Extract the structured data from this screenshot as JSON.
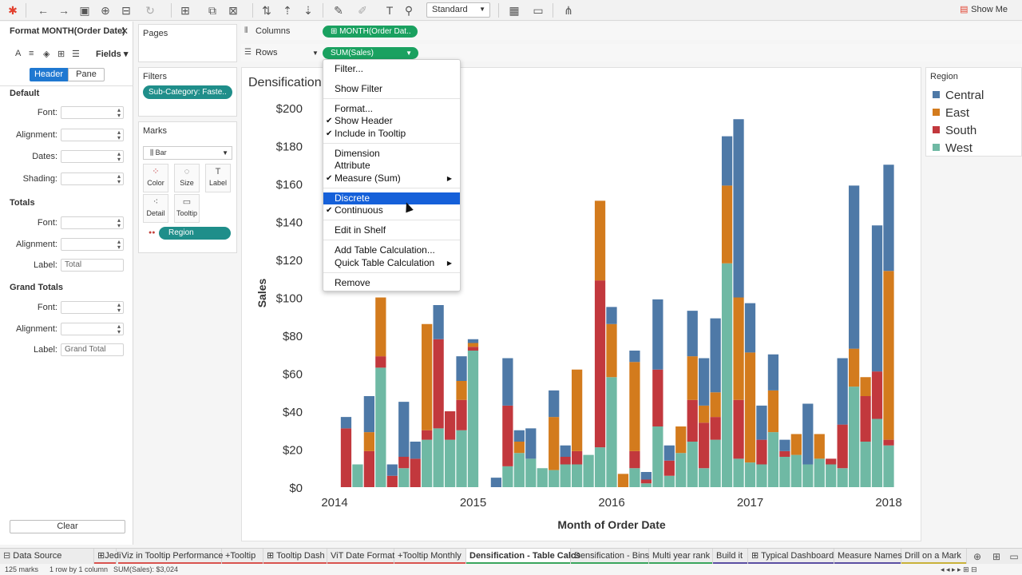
{
  "toolbar": {
    "mode_select": "Standard",
    "show_me": "Show Me"
  },
  "format_panel": {
    "title": "Format MONTH(Order Date)",
    "fields_label": "Fields",
    "tabs": [
      "Header",
      "Pane"
    ],
    "sections": {
      "default": {
        "title": "Default",
        "labels": [
          "Font:",
          "Alignment:",
          "Dates:",
          "Shading:"
        ]
      },
      "totals": {
        "title": "Totals",
        "labels": [
          "Font:",
          "Alignment:",
          "Label:"
        ],
        "label_value": "Total"
      },
      "grand_totals": {
        "title": "Grand Totals",
        "labels": [
          "Font:",
          "Alignment:",
          "Label:"
        ],
        "label_value": "Grand Total"
      }
    },
    "clear_label": "Clear"
  },
  "pages": {
    "title": "Pages"
  },
  "filters": {
    "title": "Filters",
    "pill": "Sub-Category: Faste.."
  },
  "marks": {
    "title": "Marks",
    "type": "Bar",
    "buttons": [
      "Color",
      "Size",
      "Label",
      "Detail",
      "Tooltip"
    ],
    "pill": "Region"
  },
  "shelves": {
    "columns_label": "Columns",
    "columns_pill": "MONTH(Order Dat..",
    "rows_label": "Rows",
    "rows_pill": "SUM(Sales)"
  },
  "view": {
    "title": "Densification"
  },
  "legend": {
    "title": "Region",
    "items": [
      {
        "label": "Central",
        "color": "#4e79a7"
      },
      {
        "label": "East",
        "color": "#d37b1d"
      },
      {
        "label": "South",
        "color": "#c2383d"
      },
      {
        "label": "West",
        "color": "#6fb9a4"
      }
    ]
  },
  "context_menu": {
    "items": [
      {
        "label": "Filter...",
        "checked": false
      },
      {
        "label": "Show Filter",
        "checked": false
      },
      {
        "label": "Format...",
        "checked": false
      },
      {
        "label": "Show Header",
        "checked": true
      },
      {
        "label": "Include in Tooltip",
        "checked": true
      },
      {
        "label": "Dimension",
        "checked": false
      },
      {
        "label": "Attribute",
        "checked": false
      },
      {
        "label": "Measure (Sum)",
        "checked": true,
        "submenu": true
      },
      {
        "label": "Discrete",
        "checked": false,
        "highlighted": true
      },
      {
        "label": "Continuous",
        "checked": true
      },
      {
        "label": "Edit in Shelf",
        "checked": false
      },
      {
        "label": "Add Table Calculation...",
        "checked": false
      },
      {
        "label": "Quick Table Calculation",
        "checked": false,
        "submenu": true
      },
      {
        "label": "Remove",
        "checked": false
      }
    ]
  },
  "sheet_tabs": [
    "Data Source",
    "Jedi",
    "Viz in Tooltip Performance",
    "+Tooltip",
    "Tooltip Dash",
    "ViT Date Format",
    "+Tooltip Monthly",
    "Densification - Table Calcs",
    "Densification - Bins",
    "Multi year rank",
    "Build it",
    "Typical Dashboard",
    "Measure Names",
    "Drill on a Mark"
  ],
  "active_tab": "Densification - Table Calcs",
  "status": {
    "marks": "125 marks",
    "rows": "1 row by 1 column",
    "sum": "SUM(Sales): $3,024"
  },
  "chart_data": {
    "type": "bar",
    "stacked": true,
    "xlabel": "Month of Order Date",
    "ylabel": "Sales",
    "x_ticks": [
      "2014",
      "2015",
      "2016",
      "2017",
      "2018"
    ],
    "y_ticks": [
      "$0",
      "$20",
      "$40",
      "$60",
      "$80",
      "$100",
      "$120",
      "$140",
      "$160",
      "$180",
      "$200"
    ],
    "ylim": [
      0,
      200
    ],
    "series_order": [
      "West",
      "South",
      "East",
      "Central"
    ],
    "colors": {
      "Central": "#4e79a7",
      "East": "#d37b1d",
      "South": "#c2383d",
      "West": "#6fb9a4"
    },
    "bars": [
      {
        "x": "2014-02",
        "West": 0,
        "South": 31,
        "East": 0,
        "Central": 6
      },
      {
        "x": "2014-03",
        "West": 12,
        "South": 0,
        "East": 0,
        "Central": 0
      },
      {
        "x": "2014-04",
        "West": 0,
        "South": 19,
        "East": 10,
        "Central": 19
      },
      {
        "x": "2014-05",
        "West": 63,
        "South": 6,
        "East": 31,
        "Central": 0
      },
      {
        "x": "2014-06",
        "West": 0,
        "South": 6,
        "East": 0,
        "Central": 6
      },
      {
        "x": "2014-07",
        "West": 10,
        "South": 6,
        "East": 0,
        "Central": 29
      },
      {
        "x": "2014-08",
        "West": 0,
        "South": 15,
        "East": 0,
        "Central": 9
      },
      {
        "x": "2014-09",
        "West": 25,
        "South": 5,
        "East": 56,
        "Central": 0
      },
      {
        "x": "2014-10",
        "West": 31,
        "South": 47,
        "East": 0,
        "Central": 18
      },
      {
        "x": "2014-11",
        "West": 25,
        "South": 15,
        "East": 0,
        "Central": 0
      },
      {
        "x": "2014-12",
        "West": 30,
        "South": 16,
        "East": 10,
        "Central": 13
      },
      {
        "x": "2015-01",
        "West": 72,
        "South": 2,
        "East": 2,
        "Central": 2
      },
      {
        "x": "2015-03",
        "West": 0,
        "South": 0,
        "East": 0,
        "Central": 5
      },
      {
        "x": "2015-04",
        "West": 11,
        "South": 32,
        "East": 0,
        "Central": 25
      },
      {
        "x": "2015-05",
        "West": 18,
        "South": 0,
        "East": 6,
        "Central": 6
      },
      {
        "x": "2015-06",
        "West": 15,
        "South": 0,
        "East": 0,
        "Central": 16
      },
      {
        "x": "2015-07",
        "West": 10,
        "South": 0,
        "East": 0,
        "Central": 0
      },
      {
        "x": "2015-08",
        "West": 9,
        "South": 0,
        "East": 28,
        "Central": 14
      },
      {
        "x": "2015-09",
        "West": 12,
        "South": 4,
        "East": 0,
        "Central": 6
      },
      {
        "x": "2015-10",
        "West": 12,
        "South": 7,
        "East": 43,
        "Central": 0
      },
      {
        "x": "2015-11",
        "West": 17,
        "South": 0,
        "East": 0,
        "Central": 0
      },
      {
        "x": "2015-12",
        "West": 21,
        "South": 88,
        "East": 42,
        "Central": 0
      },
      {
        "x": "2016-01",
        "West": 58,
        "South": 0,
        "East": 28,
        "Central": 9
      },
      {
        "x": "2016-02",
        "West": 0,
        "South": 0,
        "East": 7,
        "Central": 0
      },
      {
        "x": "2016-03",
        "West": 10,
        "South": 9,
        "East": 47,
        "Central": 6
      },
      {
        "x": "2016-04",
        "West": 2,
        "South": 2,
        "East": 0,
        "Central": 4
      },
      {
        "x": "2016-05",
        "West": 32,
        "South": 30,
        "East": 0,
        "Central": 37
      },
      {
        "x": "2016-06",
        "West": 6,
        "South": 8,
        "East": 0,
        "Central": 8
      },
      {
        "x": "2016-07",
        "West": 18,
        "South": 0,
        "East": 14,
        "Central": 0
      },
      {
        "x": "2016-08",
        "West": 24,
        "South": 22,
        "East": 23,
        "Central": 24
      },
      {
        "x": "2016-09",
        "West": 10,
        "South": 24,
        "East": 9,
        "Central": 25
      },
      {
        "x": "2016-10",
        "West": 25,
        "South": 12,
        "East": 13,
        "Central": 39
      },
      {
        "x": "2016-11",
        "West": 118,
        "South": 0,
        "East": 41,
        "Central": 26
      },
      {
        "x": "2016-12",
        "West": 15,
        "South": 31,
        "East": 54,
        "Central": 94
      },
      {
        "x": "2017-01",
        "West": 13,
        "South": 0,
        "East": 58,
        "Central": 26
      },
      {
        "x": "2017-02",
        "West": 12,
        "South": 13,
        "East": 0,
        "Central": 18
      },
      {
        "x": "2017-03",
        "West": 29,
        "South": 0,
        "East": 22,
        "Central": 19
      },
      {
        "x": "2017-04",
        "West": 16,
        "South": 3,
        "East": 0,
        "Central": 6
      },
      {
        "x": "2017-05",
        "West": 17,
        "South": 0,
        "East": 11,
        "Central": 0
      },
      {
        "x": "2017-06",
        "West": 12,
        "South": 0,
        "East": 0,
        "Central": 32
      },
      {
        "x": "2017-07",
        "West": 15,
        "South": 0,
        "East": 13,
        "Central": 0
      },
      {
        "x": "2017-08",
        "West": 12,
        "South": 3,
        "East": 0,
        "Central": 0
      },
      {
        "x": "2017-09",
        "West": 10,
        "South": 23,
        "East": 0,
        "Central": 35
      },
      {
        "x": "2017-10",
        "West": 53,
        "South": 0,
        "East": 20,
        "Central": 86
      },
      {
        "x": "2017-11",
        "West": 24,
        "South": 24,
        "East": 10,
        "Central": 0
      },
      {
        "x": "2017-12",
        "West": 36,
        "South": 25,
        "East": 0,
        "Central": 77
      },
      {
        "x": "2018-01",
        "West": 22,
        "South": 3,
        "East": 89,
        "Central": 56
      }
    ]
  }
}
